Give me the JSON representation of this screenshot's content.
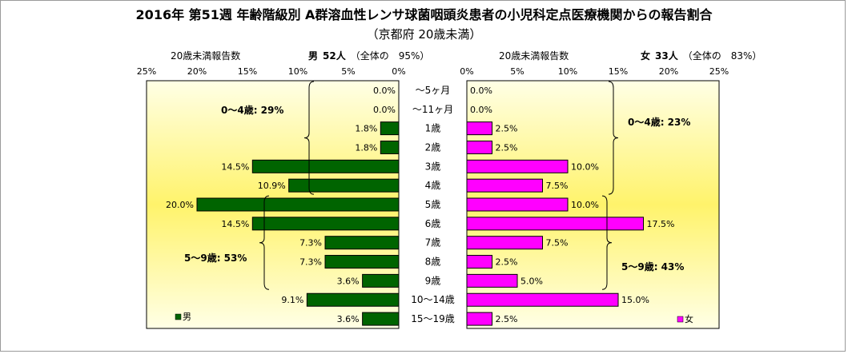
{
  "title": "2016年 第51週 年齢階級別 A群溶血性レンサ球菌咽頭炎患者の小児科定点医療機関からの報告割合",
  "subtitle": "（京都府 20歳未満）",
  "left_header": {
    "label": "20歳未満報告数",
    "sex": "男",
    "count": "52人",
    "share": "（全体の　95%）"
  },
  "right_header": {
    "label": "20歳未満報告数",
    "sex": "女",
    "count": "33人",
    "share": "（全体の　83%）"
  },
  "colors": {
    "male": "#006400",
    "female": "#ff00ff",
    "bg_edge": "#ffffe6",
    "bg_center": "#fff36b"
  },
  "chart_data": {
    "type": "bar",
    "orientation": "horizontal",
    "layout": "population-pyramid",
    "categories": [
      "～5ヶ月",
      "～11ヶ月",
      "1歳",
      "2歳",
      "3歳",
      "4歳",
      "5歳",
      "6歳",
      "7歳",
      "8歳",
      "9歳",
      "10～14歳",
      "15～19歳"
    ],
    "series": [
      {
        "name": "男",
        "values": [
          0.0,
          0.0,
          1.8,
          1.8,
          14.5,
          10.9,
          20.0,
          14.5,
          7.3,
          7.3,
          3.6,
          9.1,
          3.6
        ]
      },
      {
        "name": "女",
        "values": [
          0.0,
          0.0,
          2.5,
          2.5,
          10.0,
          7.5,
          10.0,
          17.5,
          7.5,
          2.5,
          5.0,
          15.0,
          2.5
        ]
      }
    ],
    "data_labels": {
      "male": [
        "0.0%",
        "0.0%",
        "1.8%",
        "1.8%",
        "14.5%",
        "10.9%",
        "20.0%",
        "14.5%",
        "7.3%",
        "7.3%",
        "3.6%",
        "9.1%",
        "3.6%"
      ],
      "female": [
        "0.0%",
        "0.0%",
        "2.5%",
        "2.5%",
        "10.0%",
        "7.5%",
        "10.0%",
        "17.5%",
        "7.5%",
        "2.5%",
        "5.0%",
        "15.0%",
        "2.5%"
      ]
    },
    "xlim": [
      0,
      25
    ],
    "ticks": [
      25,
      20,
      15,
      10,
      5,
      0
    ],
    "tick_labels": [
      "25%",
      "20%",
      "15%",
      "10%",
      "5%",
      "0%"
    ],
    "legend": {
      "male": "男",
      "female": "女",
      "placement": "bottom"
    },
    "annotations": {
      "male_0_4": "0～4歳: 29%",
      "male_5_9": "5～9歳: 53%",
      "female_0_4": "0～4歳: 23%",
      "female_5_9": "5～9歳: 43%"
    }
  }
}
